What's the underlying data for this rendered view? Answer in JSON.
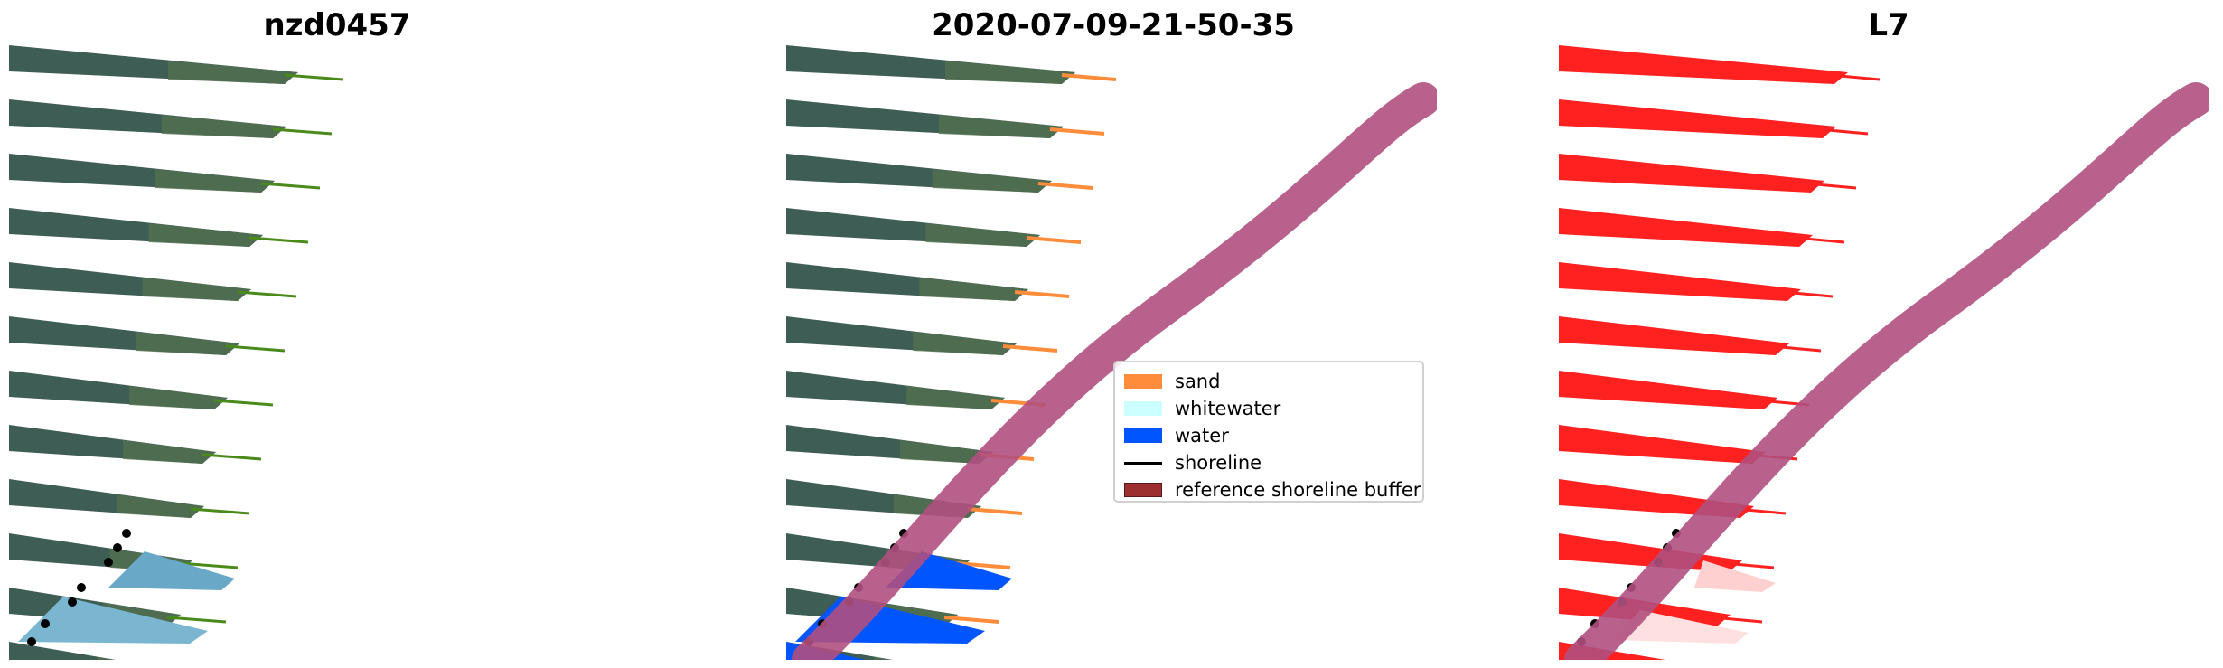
{
  "panels": [
    {
      "title": "nzd0457",
      "style": "rgb"
    },
    {
      "title": "2020-07-09-21-50-35",
      "style": "classified"
    },
    {
      "title": "L7",
      "style": "red"
    }
  ],
  "legend": {
    "items": [
      {
        "label": "sand",
        "color": "#ff8c3a",
        "kind": "patch"
      },
      {
        "label": "whitewater",
        "color": "#ccffff",
        "kind": "patch"
      },
      {
        "label": "water",
        "color": "#0055ff",
        "kind": "patch"
      },
      {
        "label": "shoreline",
        "color": "#000000",
        "kind": "line"
      },
      {
        "label": "reference shoreline buffer",
        "color": "#9c3030",
        "kind": "patch"
      }
    ]
  },
  "colors": {
    "land": "#3e5d55",
    "vegetation": "#52714f",
    "water_blue": "#0055ff",
    "sand_orange": "#ff8c3a",
    "buffer_purple": "#b0507f",
    "red_band": "#ff2020",
    "shoreline": "#000000"
  }
}
